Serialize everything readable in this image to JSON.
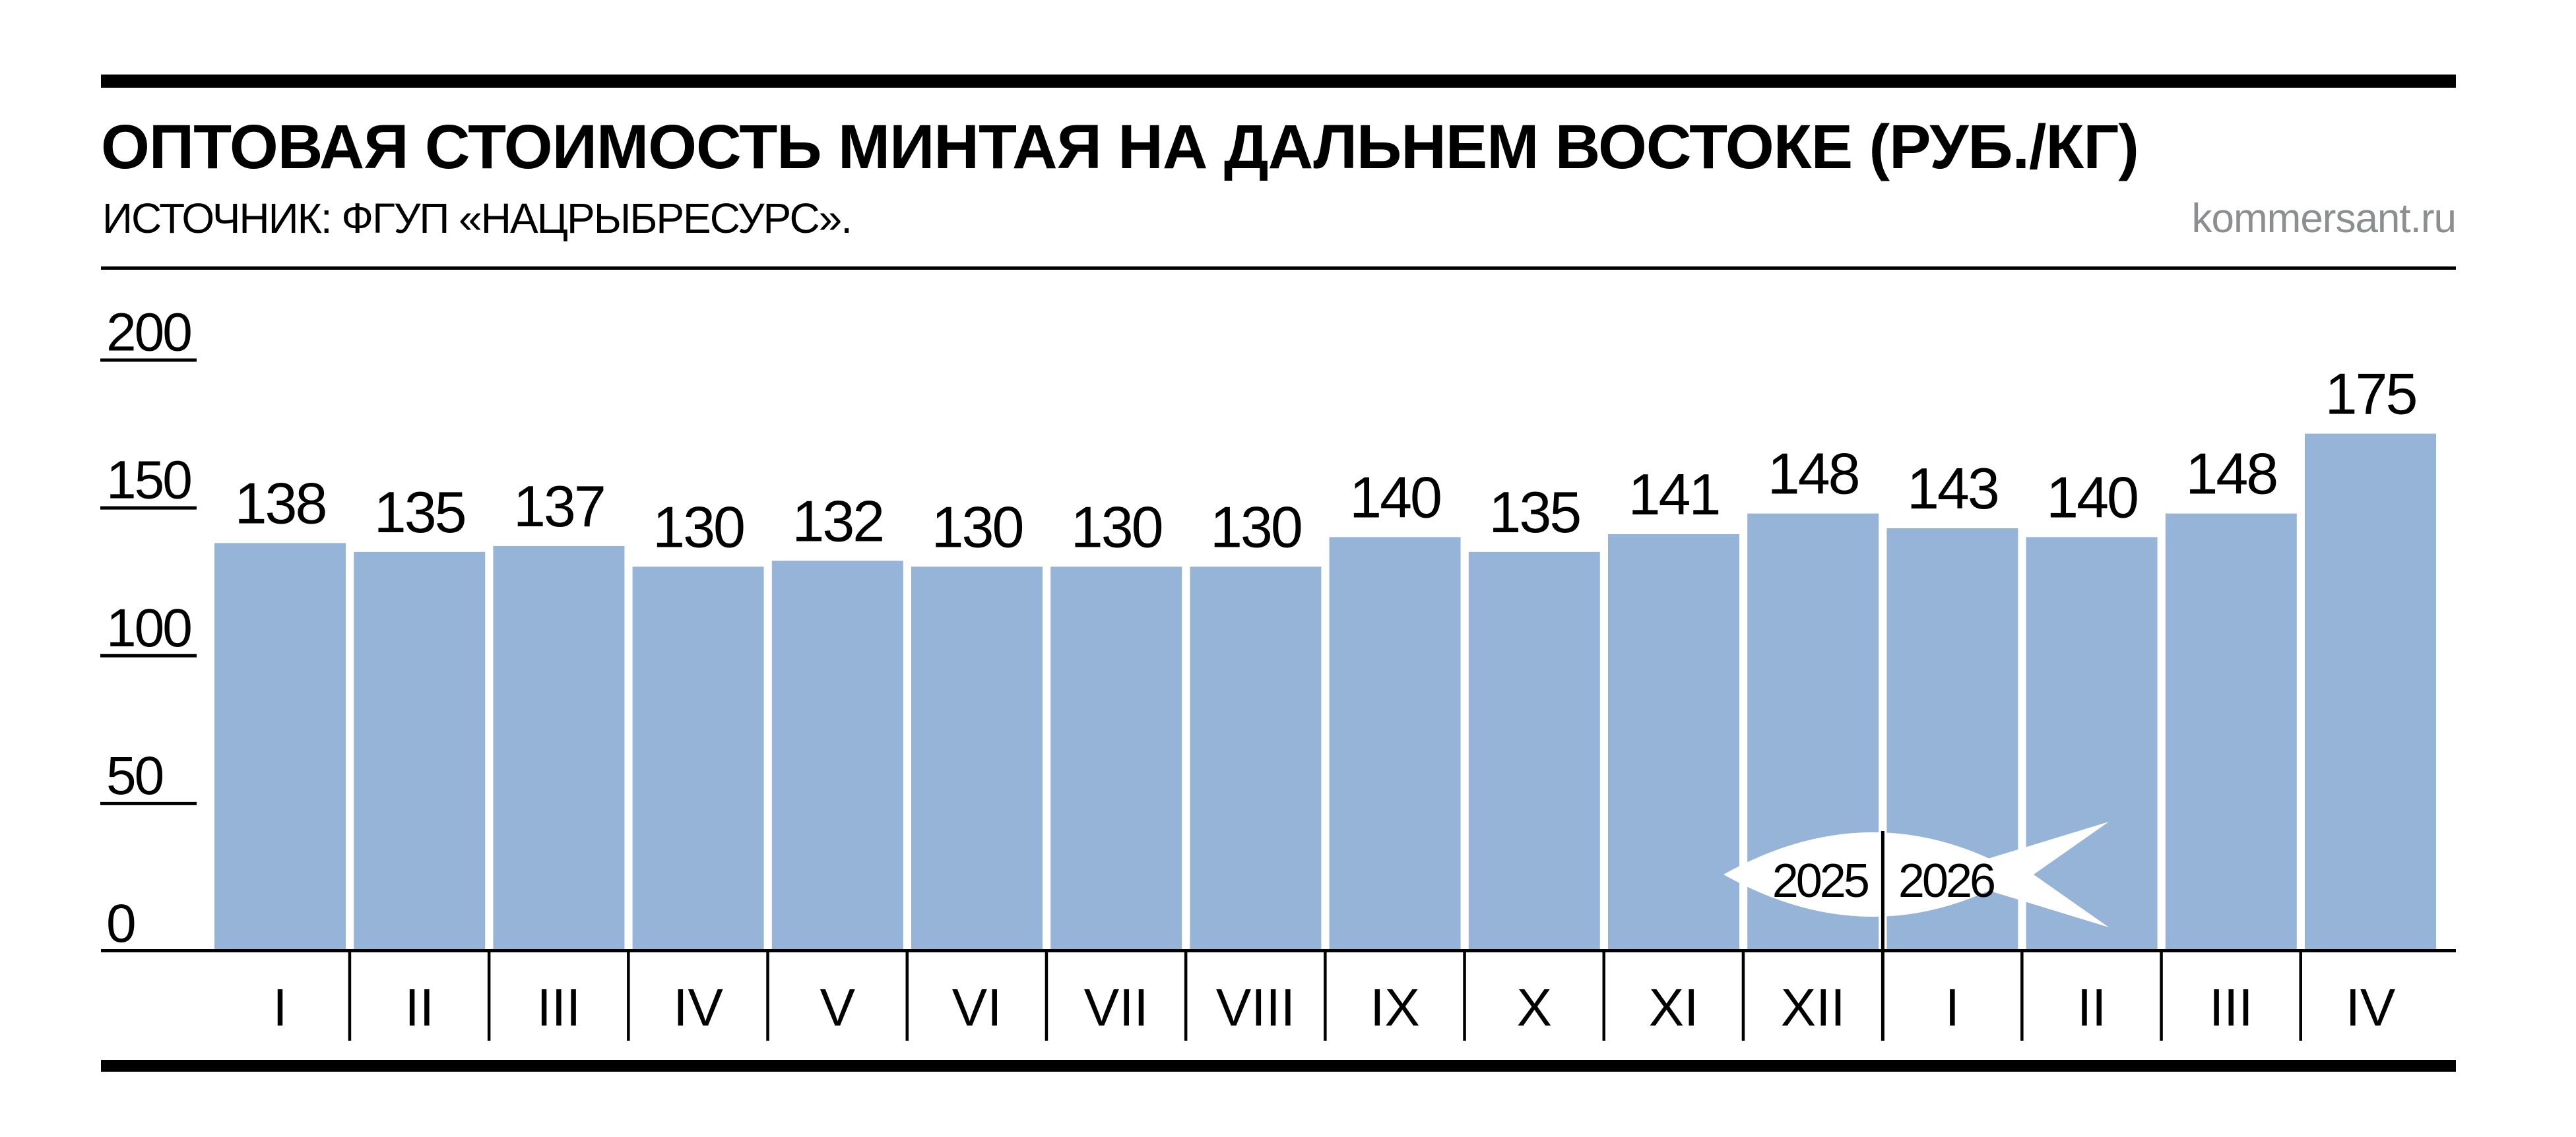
{
  "header": {
    "title": "ОПТОВАЯ СТОИМОСТЬ МИНТАЯ НА ДАЛЬНЕМ ВОСТОКЕ (РУБ./КГ)",
    "source": "ИСТОЧНИК: ФГУП «НАЦРЫБРЕСУРС».",
    "brand": "kommersant.ru"
  },
  "colors": {
    "bar": "#95b4d8",
    "ink": "#000000",
    "brand_gray": "#8c8e91",
    "background": "#ffffff",
    "fish": "#ffffff"
  },
  "chart_data": {
    "type": "bar",
    "title": "ОПТОВАЯ СТОИМОСТЬ МИНТАЯ НА ДАЛЬНЕМ ВОСТОКЕ (РУБ./КГ)",
    "source": "ИСТОЧНИК: ФГУП «НАЦРЫБРЕСУРС».",
    "watermark": "kommersant.ru",
    "categories": [
      "I",
      "II",
      "III",
      "IV",
      "V",
      "VI",
      "VII",
      "VIII",
      "IX",
      "X",
      "XI",
      "XII",
      "I",
      "II",
      "III",
      "IV"
    ],
    "values": [
      138,
      135,
      137,
      130,
      132,
      130,
      130,
      130,
      140,
      135,
      141,
      148,
      143,
      140,
      148,
      175
    ],
    "year_labels": [
      "2025",
      "2026"
    ],
    "year_split_index": 12,
    "yticks": [
      200,
      150,
      100,
      50,
      0
    ],
    "ylim": [
      0,
      200
    ],
    "xlabel": "",
    "ylabel": "",
    "legend": "none",
    "grid": "short-left-ticks",
    "bar_color": "#95b4d8"
  }
}
